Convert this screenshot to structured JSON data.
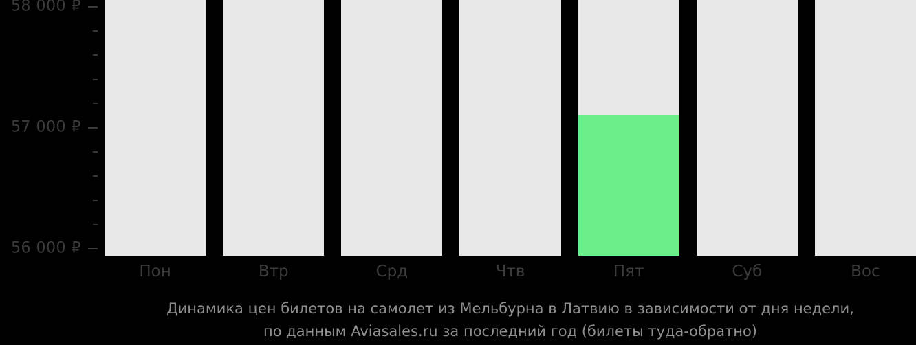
{
  "colors": {
    "background": "#000000",
    "bar_background": "#e8e8e8",
    "bar_fill": "#6cee8a",
    "axis_text": "#3b3b3b",
    "caption_text": "#8f8f8f"
  },
  "y_axis": {
    "ticks": [
      {
        "value": 58000,
        "label": "58 000 ₽",
        "major": true
      },
      {
        "value": 57800,
        "label": "",
        "major": false
      },
      {
        "value": 57600,
        "label": "",
        "major": false
      },
      {
        "value": 57400,
        "label": "",
        "major": false
      },
      {
        "value": 57200,
        "label": "",
        "major": false
      },
      {
        "value": 57000,
        "label": "57 000 ₽",
        "major": true
      },
      {
        "value": 56800,
        "label": "",
        "major": false
      },
      {
        "value": 56600,
        "label": "",
        "major": false
      },
      {
        "value": 56400,
        "label": "",
        "major": false
      },
      {
        "value": 56200,
        "label": "",
        "major": false
      },
      {
        "value": 56000,
        "label": "56 000 ₽",
        "major": true
      }
    ]
  },
  "x_axis": {
    "labels": [
      "Пон",
      "Втр",
      "Срд",
      "Чтв",
      "Пят",
      "Суб",
      "Вос"
    ]
  },
  "caption": {
    "line1": "Динамика цен билетов на самолет из Мельбурна в Латвию в зависимости от дня недели,",
    "line2": "по данным Aviasales.ru за последний год (билеты туда-обратно)"
  },
  "chart_data": {
    "type": "bar",
    "categories": [
      "Пон",
      "Втр",
      "Срд",
      "Чтв",
      "Пят",
      "Суб",
      "Вос"
    ],
    "values": [
      null,
      null,
      null,
      null,
      57100,
      null,
      null
    ],
    "title": "Динамика цен билетов на самолет из Мельбурна в Латвию в зависимости от дня недели, по данным Aviasales.ru за последний год (билеты туда-обратно)",
    "currency": "₽",
    "ylim": [
      55943,
      58057
    ],
    "yticks_major": [
      56000,
      57000,
      58000
    ],
    "ytick_minor_step": 200,
    "grid": false,
    "legend": null,
    "bar_style": "full-height gray background column per day; green fill bar only where a value exists"
  }
}
